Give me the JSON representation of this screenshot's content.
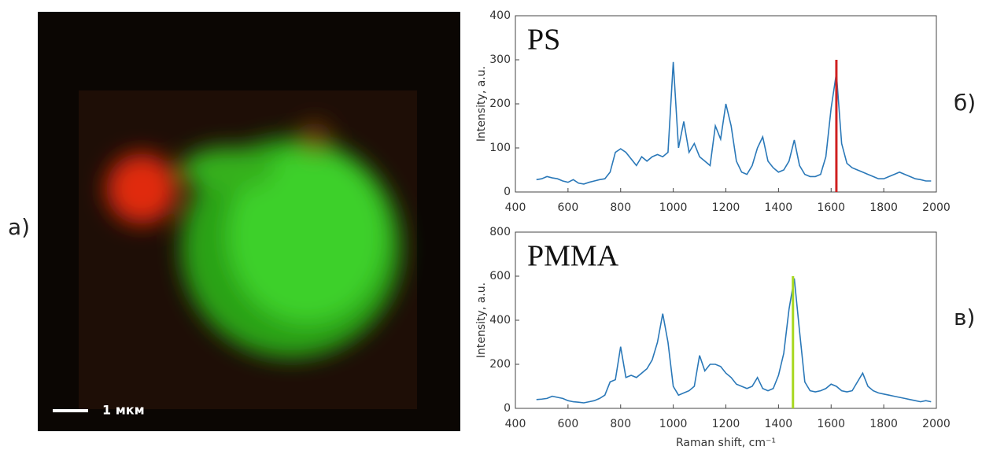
{
  "chart_data": [
    {
      "type": "line",
      "annotation": "PS",
      "y_label": "Intensity, a.u.",
      "xlim": [
        400,
        2000
      ],
      "xticks": [
        400,
        600,
        800,
        1000,
        1200,
        1400,
        1600,
        1800,
        2000
      ],
      "ylim": [
        0,
        400
      ],
      "yticks": [
        0,
        100,
        200,
        300,
        400
      ],
      "x": [
        480,
        500,
        520,
        540,
        560,
        580,
        600,
        620,
        640,
        660,
        680,
        700,
        720,
        740,
        760,
        780,
        800,
        820,
        840,
        860,
        880,
        900,
        920,
        940,
        960,
        980,
        1000,
        1020,
        1040,
        1060,
        1080,
        1100,
        1120,
        1140,
        1160,
        1180,
        1200,
        1220,
        1240,
        1260,
        1280,
        1300,
        1320,
        1340,
        1360,
        1380,
        1400,
        1420,
        1440,
        1460,
        1480,
        1500,
        1520,
        1540,
        1560,
        1580,
        1600,
        1620,
        1640,
        1660,
        1680,
        1700,
        1720,
        1740,
        1760,
        1780,
        1800,
        1820,
        1840,
        1860,
        1880,
        1900,
        1920,
        1940,
        1960,
        1980
      ],
      "series": [
        {
          "color": "#2a78b8",
          "values": [
            28,
            30,
            35,
            32,
            30,
            25,
            22,
            28,
            20,
            18,
            22,
            25,
            28,
            30,
            45,
            90,
            98,
            90,
            75,
            60,
            80,
            70,
            80,
            85,
            80,
            90,
            295,
            100,
            160,
            90,
            110,
            80,
            70,
            60,
            150,
            120,
            200,
            150,
            70,
            45,
            40,
            60,
            100,
            125,
            70,
            55,
            45,
            50,
            70,
            118,
            60,
            40,
            35,
            35,
            40,
            80,
            190,
            270,
            110,
            65,
            55,
            50,
            45,
            40,
            35,
            30,
            30,
            35,
            40,
            45,
            40,
            35,
            30,
            28,
            25,
            25
          ]
        }
      ],
      "marker": {
        "x": 1620,
        "y": 300,
        "color": "#d02020"
      }
    },
    {
      "type": "line",
      "annotation": "PMMA",
      "y_label": "Intensity, a.u.",
      "x_label": "Raman shift, cm⁻¹",
      "xlim": [
        400,
        2000
      ],
      "xticks": [
        400,
        600,
        800,
        1000,
        1200,
        1400,
        1600,
        1800,
        2000
      ],
      "ylim": [
        0,
        800
      ],
      "yticks": [
        0,
        200,
        400,
        600,
        800
      ],
      "x": [
        480,
        500,
        520,
        540,
        560,
        580,
        600,
        620,
        640,
        660,
        680,
        700,
        720,
        740,
        760,
        780,
        800,
        820,
        840,
        860,
        880,
        900,
        920,
        940,
        960,
        980,
        1000,
        1020,
        1040,
        1060,
        1080,
        1100,
        1120,
        1140,
        1160,
        1180,
        1200,
        1220,
        1240,
        1260,
        1280,
        1300,
        1320,
        1340,
        1360,
        1380,
        1400,
        1420,
        1440,
        1460,
        1480,
        1500,
        1520,
        1540,
        1560,
        1580,
        1600,
        1620,
        1640,
        1660,
        1680,
        1700,
        1720,
        1740,
        1760,
        1780,
        1800,
        1820,
        1840,
        1860,
        1880,
        1900,
        1920,
        1940,
        1960,
        1980
      ],
      "series": [
        {
          "color": "#2a78b8",
          "values": [
            40,
            42,
            45,
            55,
            50,
            45,
            35,
            30,
            28,
            25,
            30,
            35,
            45,
            60,
            120,
            130,
            280,
            140,
            150,
            140,
            160,
            180,
            220,
            300,
            430,
            300,
            100,
            60,
            70,
            80,
            100,
            240,
            170,
            200,
            200,
            190,
            160,
            140,
            110,
            100,
            90,
            100,
            140,
            90,
            80,
            90,
            150,
            250,
            450,
            590,
            350,
            120,
            80,
            75,
            80,
            90,
            110,
            100,
            80,
            75,
            80,
            120,
            160,
            100,
            80,
            70,
            65,
            60,
            55,
            50,
            45,
            40,
            35,
            30,
            35,
            30
          ]
        }
      ],
      "marker": {
        "x": 1455,
        "y": 600,
        "color": "#a8d820"
      }
    }
  ],
  "panel_labels": [
    "а)",
    "б)",
    "в)"
  ],
  "image": {
    "scale_bar_label": "1 мкм"
  }
}
